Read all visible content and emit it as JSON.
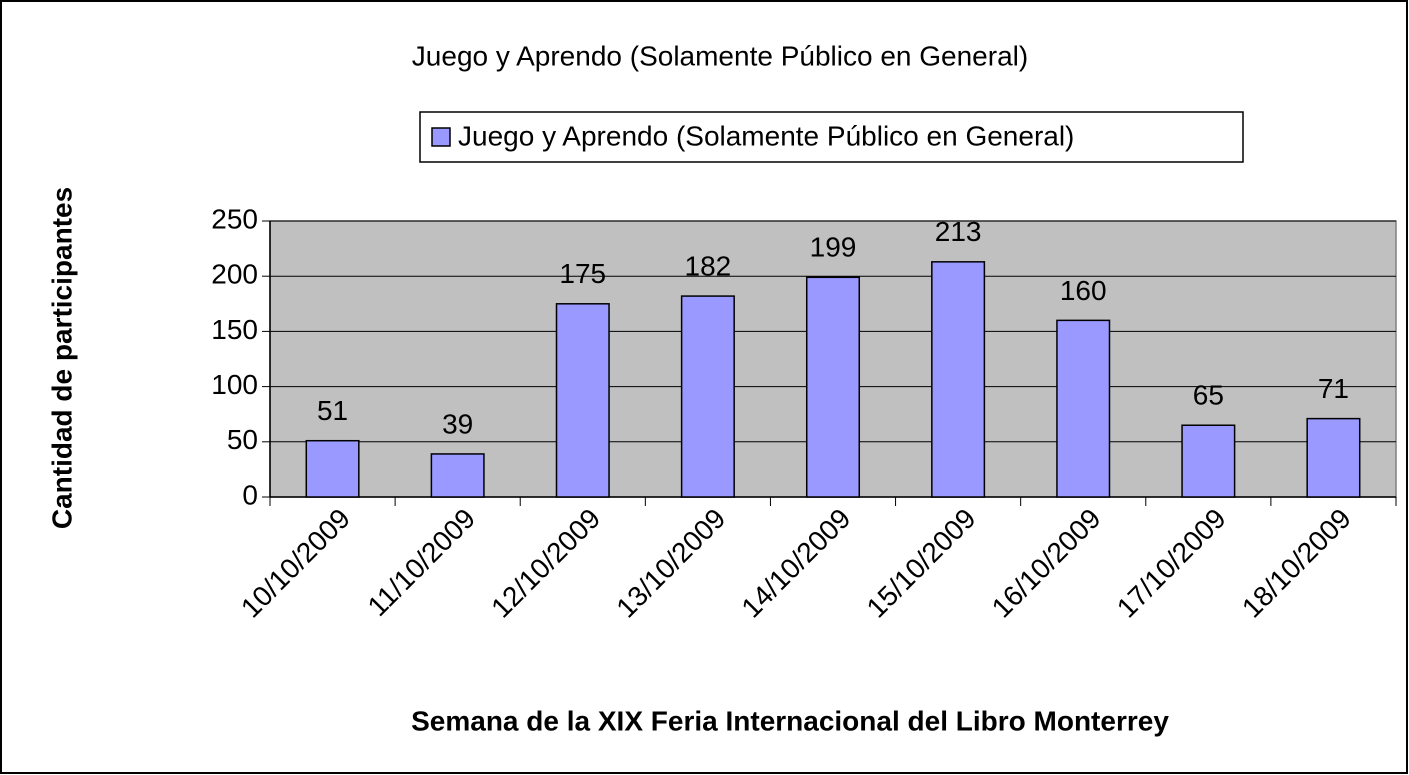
{
  "chart_data": {
    "type": "bar",
    "title": "Juego y Aprendo (Solamente Público en General)",
    "x_label": "Semana de la XIX Feria Internacional del Libro Monterrey",
    "y_label": "Cantidad de participantes",
    "categories": [
      "10/10/2009",
      "11/10/2009",
      "12/10/2009",
      "13/10/2009",
      "14/10/2009",
      "15/10/2009",
      "16/10/2009",
      "17/10/2009",
      "18/10/2009"
    ],
    "series": [
      {
        "name": "Juego y Aprendo (Solamente Público en General)",
        "color": "#9999ff",
        "values": [
          51,
          39,
          175,
          182,
          199,
          213,
          160,
          65,
          71
        ]
      }
    ],
    "ylim": [
      0,
      250
    ],
    "yticks": [
      0,
      50,
      100,
      150,
      200,
      250
    ],
    "grid": true,
    "plot_background": "#c0c0c0",
    "legend": "top"
  }
}
